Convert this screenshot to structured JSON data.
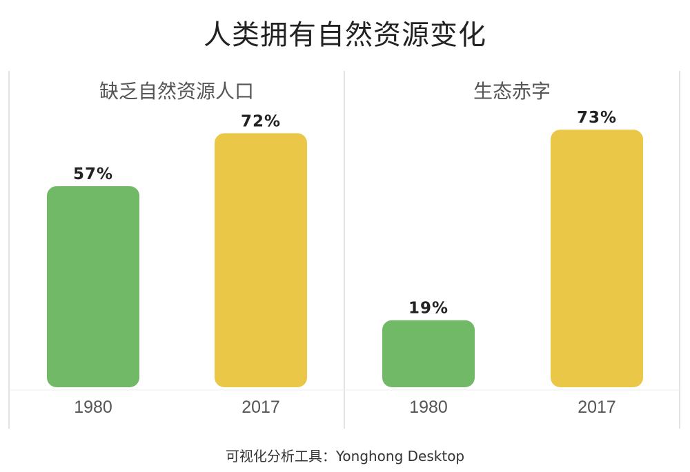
{
  "title": "人类拥有自然资源变化",
  "footer": "可视化分析工具：Yonghong Desktop",
  "colors": {
    "1980": "#71b966",
    "2017": "#ebc747"
  },
  "chart_data": [
    {
      "type": "bar",
      "title": "缺乏自然资源人口",
      "categories": [
        "1980",
        "2017"
      ],
      "values": [
        57,
        72
      ],
      "value_labels": [
        "57%",
        "72%"
      ],
      "ylim": [
        0,
        100
      ],
      "grid": false
    },
    {
      "type": "bar",
      "title": "生态赤字",
      "categories": [
        "1980",
        "2017"
      ],
      "values": [
        19,
        73
      ],
      "value_labels": [
        "19%",
        "73%"
      ],
      "ylim": [
        0,
        100
      ],
      "grid": false
    }
  ]
}
